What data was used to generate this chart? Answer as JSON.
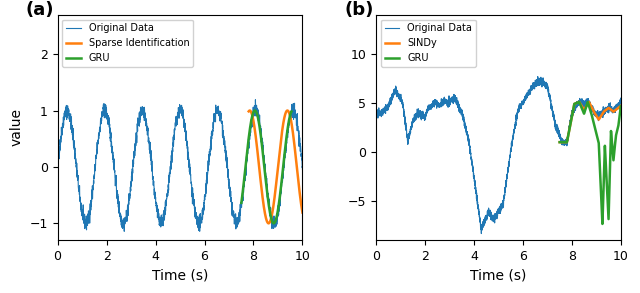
{
  "fig_width": 6.4,
  "fig_height": 2.93,
  "dpi": 100,
  "panel_a": {
    "label": "(a)",
    "xlabel": "Time (s)",
    "ylabel": "value",
    "xlim": [
      0,
      10
    ],
    "ylim": [
      -1.3,
      2.7
    ],
    "yticks": [
      -1,
      0,
      1,
      2
    ],
    "xticks": [
      0,
      2,
      4,
      6,
      8,
      10
    ],
    "legend": [
      "Original Data",
      "Sparse Identification",
      "GRU"
    ],
    "colors": {
      "original": "#1f77b4",
      "sparse": "#ff7f0e",
      "gru": "#2ca02c"
    }
  },
  "panel_b": {
    "label": "(b)",
    "xlabel": "Time (s)",
    "ylabel": "",
    "xlim": [
      0,
      10
    ],
    "ylim": [
      -9,
      14
    ],
    "yticks": [
      -5,
      0,
      5,
      10
    ],
    "xticks": [
      0,
      2,
      4,
      6,
      8,
      10
    ],
    "legend": [
      "Original Data",
      "SINDy",
      "GRU"
    ],
    "colors": {
      "original": "#1f77b4",
      "sindy": "#ff7f0e",
      "gru": "#2ca02c"
    }
  }
}
